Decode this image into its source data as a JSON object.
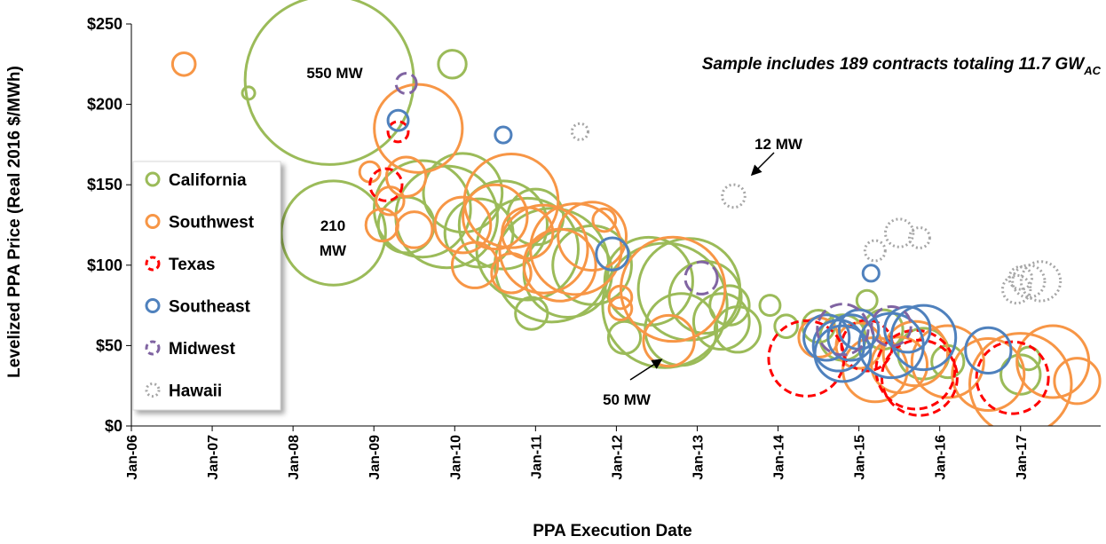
{
  "chart_data": {
    "type": "bubble",
    "x_label": "PPA Execution Date",
    "y_label": "Levelized PPA Price (Real 2016 $/MWh)",
    "note": "Sample includes 189 contracts totaling 11.7 GW",
    "note_subscript": "AC",
    "annotations": [
      "550 MW",
      "210",
      "MW",
      "12 MW",
      "50 MW"
    ],
    "xlim": [
      2006,
      2017.98
    ],
    "ylim": [
      0,
      250
    ],
    "xticks": [
      {
        "value": 2006,
        "label": "Jan-06"
      },
      {
        "value": 2007,
        "label": "Jan-07"
      },
      {
        "value": 2008,
        "label": "Jan-08"
      },
      {
        "value": 2009,
        "label": "Jan-09"
      },
      {
        "value": 2010,
        "label": "Jan-10"
      },
      {
        "value": 2011,
        "label": "Jan-11"
      },
      {
        "value": 2012,
        "label": "Jan-12"
      },
      {
        "value": 2013,
        "label": "Jan-13"
      },
      {
        "value": 2014,
        "label": "Jan-14"
      },
      {
        "value": 2015,
        "label": "Jan-15"
      },
      {
        "value": 2016,
        "label": "Jan-16"
      },
      {
        "value": 2017,
        "label": "Jan-17"
      }
    ],
    "yticks": [
      {
        "value": 0,
        "label": "$0"
      },
      {
        "value": 50,
        "label": "$50"
      },
      {
        "value": 100,
        "label": "$100"
      },
      {
        "value": 150,
        "label": "$150"
      },
      {
        "value": 200,
        "label": "$200"
      },
      {
        "value": 250,
        "label": "$250"
      }
    ],
    "legend": "left",
    "series": [
      {
        "name": "California",
        "color": "#9bbb59",
        "dash": "solid",
        "x": [
          2007.45,
          2008.45,
          2008.5,
          2009.97,
          2009.6,
          2009.9,
          2010.1,
          2010.3,
          2010.6,
          2010.9,
          2011.0,
          2010.95,
          2011.2,
          2011.4,
          2011.7,
          2012.1,
          2012.4,
          2012.6,
          2012.9,
          2013.1,
          2013.3,
          2013.5,
          2013.4,
          2013.9,
          2014.1,
          2014.5,
          2014.8,
          2015.1,
          2015.3,
          2015.8,
          2016.1,
          2017.0,
          2017.1,
          2012.8,
          2009.4
        ],
        "values": [
          207,
          215,
          120,
          225,
          135,
          130,
          145,
          120,
          125,
          110,
          130,
          70,
          100,
          95,
          100,
          55,
          90,
          75,
          85,
          80,
          65,
          60,
          75,
          75,
          62,
          62,
          55,
          78,
          60,
          45,
          40,
          32,
          42,
          60,
          125
        ],
        "sizes": [
          3,
          550,
          210,
          15,
          180,
          200,
          120,
          90,
          150,
          200,
          60,
          20,
          250,
          150,
          120,
          20,
          150,
          300,
          200,
          100,
          60,
          40,
          30,
          8,
          10,
          20,
          40,
          8,
          30,
          50,
          20,
          30,
          10,
          100,
          60
        ]
      },
      {
        "name": "Southwest",
        "color": "#f79646",
        "dash": "solid",
        "x": [
          2006.65,
          2009.55,
          2008.95,
          2009.4,
          2009.2,
          2009.1,
          2009.5,
          2010.1,
          2010.25,
          2010.5,
          2010.7,
          2010.9,
          2010.7,
          2011.1,
          2011.5,
          2011.3,
          2011.7,
          2011.85,
          2012.05,
          2012.05,
          2012.7,
          2012.65,
          2015.2,
          2015.5,
          2015.7,
          2016.1,
          2016.6,
          2017.0,
          2017.4,
          2017.7,
          2014.5,
          2015.0
        ],
        "values": [
          225,
          185,
          158,
          155,
          140,
          125,
          122,
          125,
          100,
          130,
          140,
          120,
          95,
          110,
          110,
          100,
          118,
          128,
          80,
          73,
          85,
          53,
          35,
          38,
          45,
          40,
          32,
          26,
          40,
          28,
          55,
          50
        ],
        "sizes": [
          10,
          150,
          8,
          30,
          15,
          20,
          25,
          60,
          40,
          80,
          170,
          50,
          30,
          150,
          160,
          100,
          90,
          10,
          10,
          10,
          210,
          50,
          80,
          60,
          80,
          100,
          100,
          200,
          100,
          40,
          30,
          40
        ]
      },
      {
        "name": "Texas",
        "color": "#ff0000",
        "dash": "dashed",
        "x": [
          2009.3,
          2009.15,
          2014.35,
          2015.7,
          2015.75,
          2016.9,
          2015.1
        ],
        "values": [
          183,
          150,
          42,
          35,
          30,
          30,
          50
        ],
        "sizes": [
          8,
          20,
          110,
          120,
          110,
          100,
          50
        ]
      },
      {
        "name": "Southeast",
        "color": "#4f81bd",
        "dash": "solid",
        "x": [
          2009.3,
          2010.6,
          2011.95,
          2015.15,
          2014.75,
          2014.8,
          2014.9,
          2015.4,
          2015.6,
          2015.8,
          2016.6,
          2015.0,
          2014.6
        ],
        "values": [
          190,
          181,
          107,
          95,
          50,
          45,
          55,
          50,
          60,
          55,
          47,
          60,
          55
        ],
        "sizes": [
          8,
          5,
          20,
          5,
          50,
          60,
          40,
          80,
          40,
          80,
          40,
          30,
          40
        ]
      },
      {
        "name": "Midwest",
        "color": "#8064a2",
        "dash": "long-dash",
        "x": [
          2009.4,
          2013.05,
          2014.8,
          2015.4
        ],
        "values": [
          213,
          92,
          60,
          62
        ],
        "sizes": [
          8,
          20,
          50,
          30
        ]
      },
      {
        "name": "Hawaii",
        "color": "#a6a6a6",
        "dash": "dotted",
        "x": [
          2011.55,
          2013.45,
          2015.2,
          2015.5,
          2015.75,
          2016.95,
          2017.1,
          2017.25,
          2017.0
        ],
        "values": [
          183,
          143,
          109,
          120,
          117,
          85,
          90,
          90,
          92
        ],
        "sizes": [
          5,
          10,
          8,
          15,
          8,
          15,
          20,
          30,
          10
        ]
      }
    ]
  }
}
